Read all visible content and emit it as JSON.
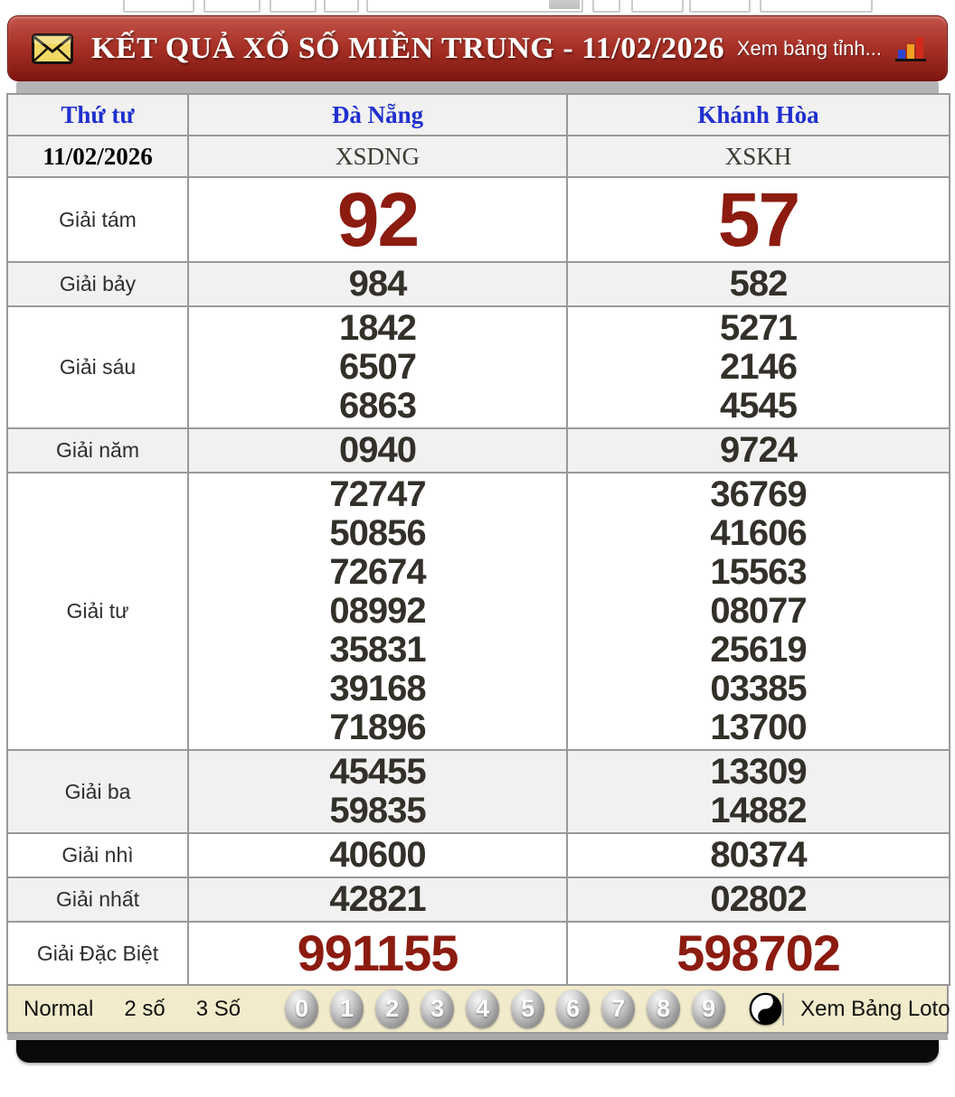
{
  "header": {
    "title": "KẾT QUẢ XỔ SỐ MIỀN TRUNG - 11/02/2026",
    "envelope_icon": "envelope-icon",
    "chart_icon": "bar-chart-icon",
    "province_link": "Xem bảng tỉnh..."
  },
  "table": {
    "columns": [
      "Thứ tư",
      "Đà Nẵng",
      "Khánh Hòa"
    ],
    "date": "11/02/2026",
    "codes": [
      "XSDNG",
      "XSKH"
    ],
    "prizes": [
      {
        "label": "Giải tám",
        "style": "huge",
        "shaded": false,
        "danang": [
          "92"
        ],
        "khanhhoa": [
          "57"
        ]
      },
      {
        "label": "Giải bảy",
        "style": "normal",
        "shaded": true,
        "danang": [
          "984"
        ],
        "khanhhoa": [
          "582"
        ]
      },
      {
        "label": "Giải sáu",
        "style": "normal",
        "shaded": false,
        "danang": [
          "1842",
          "6507",
          "6863"
        ],
        "khanhhoa": [
          "5271",
          "2146",
          "4545"
        ]
      },
      {
        "label": "Giải năm",
        "style": "normal",
        "shaded": true,
        "danang": [
          "0940"
        ],
        "khanhhoa": [
          "9724"
        ]
      },
      {
        "label": "Giải tư",
        "style": "normal",
        "shaded": false,
        "danang": [
          "72747",
          "50856",
          "72674",
          "08992",
          "35831",
          "39168",
          "71896"
        ],
        "khanhhoa": [
          "36769",
          "41606",
          "15563",
          "08077",
          "25619",
          "03385",
          "13700"
        ]
      },
      {
        "label": "Giải ba",
        "style": "normal",
        "shaded": true,
        "danang": [
          "45455",
          "59835"
        ],
        "khanhhoa": [
          "13309",
          "14882"
        ]
      },
      {
        "label": "Giải nhì",
        "style": "normal",
        "shaded": false,
        "danang": [
          "40600"
        ],
        "khanhhoa": [
          "80374"
        ]
      },
      {
        "label": "Giải nhất",
        "style": "normal",
        "shaded": true,
        "danang": [
          "42821"
        ],
        "khanhhoa": [
          "02802"
        ]
      },
      {
        "label": "Giải Đặc Biệt",
        "style": "special",
        "shaded": false,
        "danang": [
          "991155"
        ],
        "khanhhoa": [
          "598702"
        ]
      }
    ]
  },
  "footer": {
    "tabs": [
      "Normal",
      "2 số",
      "3 Số"
    ],
    "digit_buttons": [
      "0",
      "1",
      "2",
      "3",
      "4",
      "5",
      "6",
      "7",
      "8",
      "9"
    ],
    "yin_yang_icon": "yin-yang-icon",
    "loto_link": "Xem Bảng Loto"
  },
  "colors": {
    "header_red": "#9c2b21",
    "prize_red": "#8c1b10",
    "link_blue": "#2030cf",
    "footer_cream": "#f1ebcb"
  }
}
